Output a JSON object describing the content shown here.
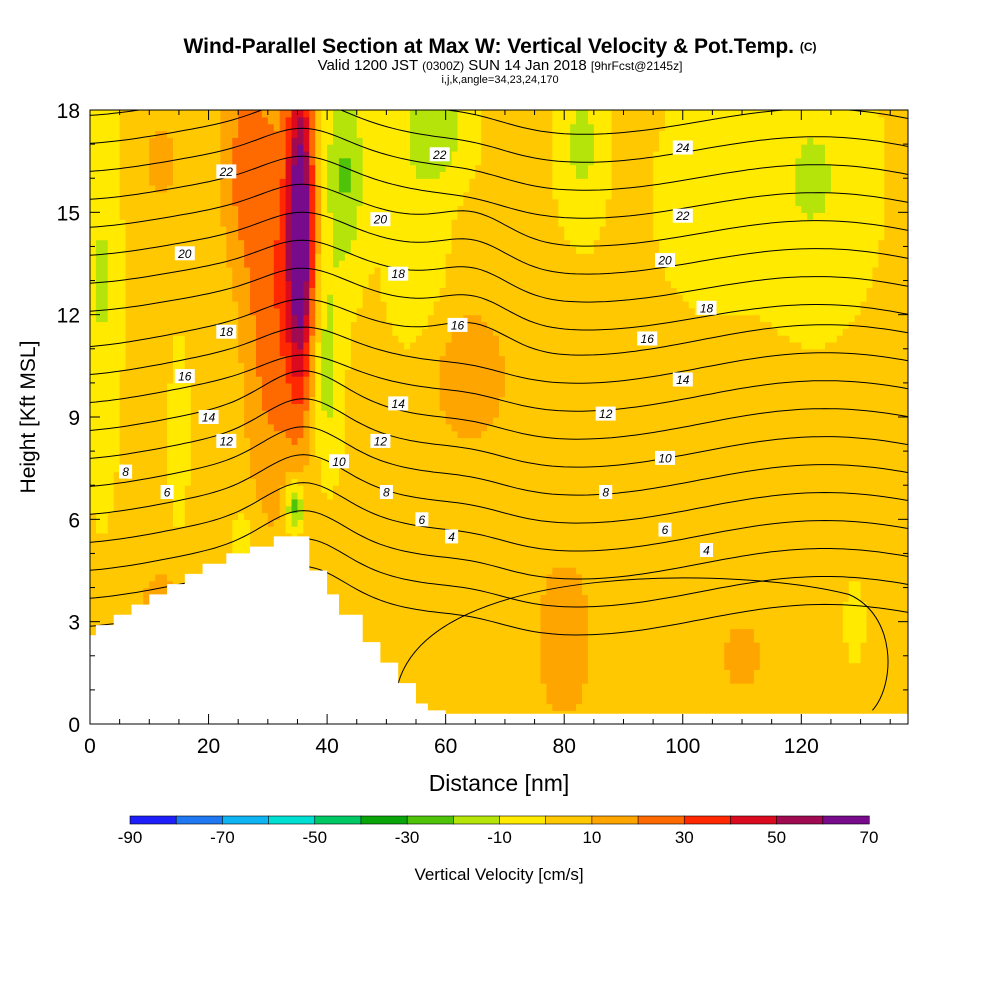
{
  "title": {
    "main": "Wind-Parallel Section at Max W: Vertical Velocity & Pot.Temp.",
    "copyright": "(C)",
    "valid": "Valid 1200 JST",
    "utc": "(0300Z)",
    "date": "SUN 14 Jan 2018",
    "forecast": "[9hrFcst@2145z]",
    "indices": "i,j,k,angle=34,23,24,170"
  },
  "chart_data": {
    "type": "heatmap",
    "title": "Wind-Parallel Section at Max W: Vertical Velocity & Pot.Temp.",
    "xlabel": "Distance [nm]",
    "ylabel": "Height [Kft MSL]",
    "xlim": [
      0,
      138
    ],
    "ylim": [
      0,
      18
    ],
    "x_ticks": [
      0,
      20,
      40,
      60,
      80,
      100,
      120
    ],
    "y_ticks": [
      0,
      3,
      6,
      9,
      12,
      15,
      18
    ],
    "grid": false,
    "colorbar": {
      "label": "Vertical Velocity [cm/s]",
      "tick_labels": [
        "-90",
        "-70",
        "-50",
        "-30",
        "-10",
        "10",
        "30",
        "50",
        "70"
      ],
      "bounds": [
        -90,
        70
      ],
      "colors": [
        "#1e1efa",
        "#1f78f2",
        "#0fb4f2",
        "#00e0d2",
        "#00c864",
        "#0aa50a",
        "#4fc20a",
        "#b4e40a",
        "#ffea00",
        "#ffc800",
        "#ffa500",
        "#ff6a00",
        "#ff2800",
        "#dc0a1e",
        "#a00a50",
        "#780a8c"
      ]
    },
    "terrain": [
      [
        0,
        2.6
      ],
      [
        1,
        2.6
      ],
      [
        1,
        2.9
      ],
      [
        4,
        2.9
      ],
      [
        4,
        3.2
      ],
      [
        7,
        3.2
      ],
      [
        7,
        3.5
      ],
      [
        10,
        3.5
      ],
      [
        10,
        3.8
      ],
      [
        13,
        3.8
      ],
      [
        13,
        4.1
      ],
      [
        16,
        4.1
      ],
      [
        16,
        4.4
      ],
      [
        19,
        4.4
      ],
      [
        19,
        4.7
      ],
      [
        23,
        4.7
      ],
      [
        23,
        5.0
      ],
      [
        27,
        5.0
      ],
      [
        27,
        5.2
      ],
      [
        31,
        5.2
      ],
      [
        31,
        5.5
      ],
      [
        37,
        5.5
      ],
      [
        37,
        4.5
      ],
      [
        40,
        4.5
      ],
      [
        40,
        3.8
      ],
      [
        42,
        3.8
      ],
      [
        42,
        3.2
      ],
      [
        46,
        3.2
      ],
      [
        46,
        2.4
      ],
      [
        49,
        2.4
      ],
      [
        49,
        1.8
      ],
      [
        52,
        1.8
      ],
      [
        52,
        1.2
      ],
      [
        55,
        1.2
      ],
      [
        55,
        0.6
      ],
      [
        57,
        0.6
      ],
      [
        57,
        0.4
      ],
      [
        60,
        0.4
      ],
      [
        60,
        0.3
      ],
      [
        138,
        0.3
      ]
    ],
    "theta_contours": [
      {
        "level": 4,
        "label_points": [
          [
            61,
            5.5
          ],
          [
            104,
            5.1
          ]
        ]
      },
      {
        "level": 6,
        "label_points": [
          [
            13,
            6.8
          ],
          [
            56,
            6.0
          ],
          [
            97,
            5.7
          ]
        ]
      },
      {
        "level": 8,
        "label_points": [
          [
            6,
            7.4
          ],
          [
            50,
            6.8
          ],
          [
            87,
            6.8
          ]
        ]
      },
      {
        "level": 10,
        "label_points": [
          [
            42,
            7.7
          ],
          [
            97,
            7.8
          ]
        ]
      },
      {
        "level": 12,
        "label_points": [
          [
            23,
            8.3
          ],
          [
            49,
            8.3
          ],
          [
            87,
            9.1
          ]
        ]
      },
      {
        "level": 14,
        "label_points": [
          [
            20,
            9.0
          ],
          [
            52,
            9.4
          ],
          [
            100,
            10.1
          ]
        ]
      },
      {
        "level": 16,
        "label_points": [
          [
            16,
            10.2
          ],
          [
            62,
            11.7
          ],
          [
            94,
            11.3
          ]
        ]
      },
      {
        "level": 18,
        "label_points": [
          [
            23,
            11.5
          ],
          [
            52,
            13.2
          ],
          [
            104,
            12.2
          ]
        ]
      },
      {
        "level": 20,
        "label_points": [
          [
            16,
            13.8
          ],
          [
            49,
            14.8
          ],
          [
            97,
            13.6
          ]
        ]
      },
      {
        "level": 22,
        "label_points": [
          [
            23,
            16.2
          ],
          [
            59,
            16.7
          ],
          [
            100,
            14.9
          ]
        ]
      },
      {
        "level": 24,
        "label_points": [
          [
            100,
            16.9
          ]
        ]
      }
    ],
    "velocity_features": [
      {
        "x": 35,
        "y": 13.5,
        "w_max": 70,
        "description": "updraft core"
      },
      {
        "x": 34,
        "y": 6.2,
        "w_min": -30,
        "description": "low-level downdraft"
      },
      {
        "x": 42,
        "y": 15.5,
        "w_min": -30,
        "description": "lee downdraft"
      },
      {
        "x": 65,
        "y": 10,
        "w_max": 20,
        "description": "mid-level updraft"
      },
      {
        "x": 80,
        "y": 2.5,
        "w_max": 20,
        "description": "low-level updraft"
      }
    ]
  }
}
